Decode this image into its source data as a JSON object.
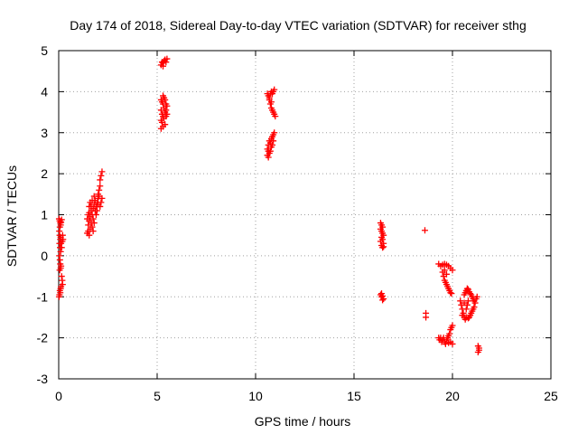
{
  "chart_data": {
    "type": "scatter",
    "title": "Day 174 of 2018, Sidereal Day-to-day VTEC variation (SDTVAR) for receiver sthg",
    "xlabel": "GPS time / hours",
    "ylabel": "SDTVAR / TECUs",
    "xlim": [
      0,
      25
    ],
    "ylim": [
      -3,
      5
    ],
    "xticks": [
      "0",
      "5",
      "10",
      "15",
      "20",
      "25"
    ],
    "yticks": [
      "-3",
      "-2",
      "-1",
      "0",
      "1",
      "2",
      "3",
      "4",
      "5"
    ],
    "grid": true,
    "marker": "+",
    "color": "#ff0000",
    "series": [
      {
        "name": "SDTVAR",
        "points": [
          [
            0.02,
            0.9
          ],
          [
            0.05,
            0.85
          ],
          [
            0.08,
            0.8
          ],
          [
            0.1,
            0.75
          ],
          [
            0.12,
            0.82
          ],
          [
            0.15,
            0.88
          ],
          [
            0.06,
            0.7
          ],
          [
            0.03,
            0.6
          ],
          [
            0.05,
            0.5
          ],
          [
            0.08,
            0.4
          ],
          [
            0.12,
            0.3
          ],
          [
            0.15,
            0.2
          ],
          [
            0.1,
            0.45
          ],
          [
            0.18,
            0.35
          ],
          [
            0.2,
            0.5
          ],
          [
            0.22,
            0.4
          ],
          [
            0.04,
            0.3
          ],
          [
            0.07,
            0.2
          ],
          [
            0.1,
            0.1
          ],
          [
            0.03,
            0.0
          ],
          [
            0.06,
            -0.1
          ],
          [
            0.08,
            -0.2
          ],
          [
            0.1,
            -0.3
          ],
          [
            0.12,
            -0.25
          ],
          [
            0.05,
            -0.35
          ],
          [
            0.15,
            -0.5
          ],
          [
            0.18,
            -0.6
          ],
          [
            0.2,
            -0.7
          ],
          [
            0.12,
            -0.75
          ],
          [
            0.1,
            -0.8
          ],
          [
            0.06,
            -0.85
          ],
          [
            0.04,
            -0.95
          ],
          [
            0.02,
            -1.0
          ],
          [
            0.08,
            -0.9
          ],
          [
            1.45,
            0.55
          ],
          [
            1.5,
            0.6
          ],
          [
            1.55,
            0.5
          ],
          [
            1.6,
            0.65
          ],
          [
            1.5,
            0.75
          ],
          [
            1.55,
            0.85
          ],
          [
            1.45,
            0.9
          ],
          [
            1.5,
            1.0
          ],
          [
            1.55,
            1.05
          ],
          [
            1.6,
            0.95
          ],
          [
            1.65,
            1.1
          ],
          [
            1.7,
            1.0
          ],
          [
            1.75,
            0.9
          ],
          [
            1.8,
            0.8
          ],
          [
            1.7,
            0.7
          ],
          [
            1.65,
            0.8
          ],
          [
            1.75,
            1.15
          ],
          [
            1.8,
            1.25
          ],
          [
            1.85,
            1.1
          ],
          [
            1.9,
            1.2
          ],
          [
            1.95,
            1.3
          ],
          [
            2.0,
            1.4
          ],
          [
            1.85,
            1.35
          ],
          [
            1.9,
            1.0
          ],
          [
            1.95,
            1.1
          ],
          [
            2.0,
            1.5
          ],
          [
            2.05,
            1.6
          ],
          [
            2.1,
            1.7
          ],
          [
            2.05,
            1.45
          ],
          [
            2.0,
            1.25
          ],
          [
            2.1,
            1.85
          ],
          [
            2.15,
            1.95
          ],
          [
            2.2,
            2.05
          ],
          [
            2.15,
            1.3
          ],
          [
            2.2,
            1.4
          ],
          [
            2.1,
            1.2
          ],
          [
            1.55,
            1.2
          ],
          [
            1.6,
            1.3
          ],
          [
            1.7,
            1.35
          ],
          [
            1.65,
            1.2
          ],
          [
            1.8,
            1.45
          ],
          [
            1.75,
            0.6
          ],
          [
            5.2,
            4.65
          ],
          [
            5.25,
            4.72
          ],
          [
            5.3,
            4.7
          ],
          [
            5.35,
            4.75
          ],
          [
            5.4,
            4.78
          ],
          [
            5.45,
            4.72
          ],
          [
            5.5,
            4.8
          ],
          [
            5.3,
            4.62
          ],
          [
            5.2,
            3.8
          ],
          [
            5.25,
            3.75
          ],
          [
            5.3,
            3.7
          ],
          [
            5.35,
            3.6
          ],
          [
            5.4,
            3.5
          ],
          [
            5.2,
            3.55
          ],
          [
            5.25,
            3.45
          ],
          [
            5.3,
            3.4
          ],
          [
            5.35,
            3.35
          ],
          [
            5.2,
            3.3
          ],
          [
            5.25,
            3.25
          ],
          [
            5.3,
            3.15
          ],
          [
            5.2,
            3.1
          ],
          [
            5.4,
            3.8
          ],
          [
            5.45,
            3.7
          ],
          [
            5.5,
            3.65
          ],
          [
            5.45,
            3.55
          ],
          [
            5.5,
            3.45
          ],
          [
            5.45,
            3.4
          ],
          [
            5.35,
            3.85
          ],
          [
            5.3,
            3.9
          ],
          [
            5.4,
            3.2
          ],
          [
            10.6,
            3.95
          ],
          [
            10.65,
            3.9
          ],
          [
            10.7,
            3.85
          ],
          [
            10.75,
            3.95
          ],
          [
            10.8,
            4.0
          ],
          [
            10.85,
            3.95
          ],
          [
            10.9,
            4.0
          ],
          [
            10.95,
            4.05
          ],
          [
            10.7,
            3.8
          ],
          [
            10.75,
            3.7
          ],
          [
            10.8,
            3.6
          ],
          [
            10.85,
            3.55
          ],
          [
            10.9,
            3.5
          ],
          [
            10.95,
            3.45
          ],
          [
            11.0,
            3.4
          ],
          [
            10.8,
            3.75
          ],
          [
            10.6,
            2.45
          ],
          [
            10.65,
            2.4
          ],
          [
            10.7,
            2.5
          ],
          [
            10.6,
            2.6
          ],
          [
            10.65,
            2.7
          ],
          [
            10.7,
            2.8
          ],
          [
            10.75,
            2.75
          ],
          [
            10.8,
            2.85
          ],
          [
            10.85,
            2.9
          ],
          [
            10.9,
            2.95
          ],
          [
            10.95,
            3.0
          ],
          [
            10.75,
            2.55
          ],
          [
            10.8,
            2.65
          ],
          [
            10.85,
            2.7
          ],
          [
            10.9,
            2.8
          ],
          [
            10.65,
            2.55
          ],
          [
            16.35,
            0.8
          ],
          [
            16.4,
            0.75
          ],
          [
            16.45,
            0.7
          ],
          [
            16.35,
            0.65
          ],
          [
            16.4,
            0.6
          ],
          [
            16.45,
            0.55
          ],
          [
            16.5,
            0.5
          ],
          [
            16.4,
            0.45
          ],
          [
            16.45,
            0.4
          ],
          [
            16.5,
            0.3
          ],
          [
            16.4,
            0.25
          ],
          [
            16.45,
            0.2
          ],
          [
            16.5,
            0.22
          ],
          [
            16.35,
            0.35
          ],
          [
            16.35,
            -0.95
          ],
          [
            16.4,
            -1.0
          ],
          [
            16.45,
            -0.98
          ],
          [
            16.5,
            -1.05
          ],
          [
            16.4,
            -0.92
          ],
          [
            16.45,
            -1.08
          ],
          [
            18.6,
            0.62
          ],
          [
            18.65,
            -1.4
          ],
          [
            18.65,
            -1.5
          ],
          [
            19.3,
            -0.2
          ],
          [
            19.4,
            -0.25
          ],
          [
            19.5,
            -0.22
          ],
          [
            19.6,
            -0.2
          ],
          [
            19.7,
            -0.22
          ],
          [
            19.8,
            -0.25
          ],
          [
            19.9,
            -0.3
          ],
          [
            20.0,
            -0.35
          ],
          [
            19.5,
            -0.4
          ],
          [
            19.55,
            -0.5
          ],
          [
            19.6,
            -0.6
          ],
          [
            19.65,
            -0.65
          ],
          [
            19.7,
            -0.7
          ],
          [
            19.75,
            -0.75
          ],
          [
            19.8,
            -0.8
          ],
          [
            19.85,
            -0.85
          ],
          [
            19.9,
            -0.9
          ],
          [
            19.95,
            -0.92
          ],
          [
            19.7,
            -0.45
          ],
          [
            19.6,
            -0.35
          ],
          [
            19.3,
            -2.0
          ],
          [
            19.35,
            -2.05
          ],
          [
            19.4,
            -2.0
          ],
          [
            19.45,
            -2.1
          ],
          [
            19.5,
            -2.05
          ],
          [
            19.55,
            -2.0
          ],
          [
            19.6,
            -2.1
          ],
          [
            19.65,
            -2.15
          ],
          [
            19.7,
            -2.05
          ],
          [
            19.75,
            -2.0
          ],
          [
            19.8,
            -1.95
          ],
          [
            19.85,
            -1.9
          ],
          [
            19.9,
            -1.8
          ],
          [
            19.95,
            -1.75
          ],
          [
            20.0,
            -1.7
          ],
          [
            19.9,
            -2.1
          ],
          [
            20.0,
            -2.15
          ],
          [
            19.8,
            -2.12
          ],
          [
            20.4,
            -1.1
          ],
          [
            20.45,
            -1.2
          ],
          [
            20.5,
            -1.3
          ],
          [
            20.55,
            -1.4
          ],
          [
            20.6,
            -1.5
          ],
          [
            20.65,
            -1.55
          ],
          [
            20.5,
            -1.45
          ],
          [
            20.7,
            -1.5
          ],
          [
            20.6,
            -0.95
          ],
          [
            20.65,
            -0.9
          ],
          [
            20.7,
            -0.85
          ],
          [
            20.75,
            -0.8
          ],
          [
            20.8,
            -0.82
          ],
          [
            20.85,
            -0.88
          ],
          [
            20.9,
            -0.92
          ],
          [
            20.95,
            -0.95
          ],
          [
            21.0,
            -1.0
          ],
          [
            21.05,
            -1.05
          ],
          [
            21.1,
            -1.1
          ],
          [
            21.15,
            -1.15
          ],
          [
            21.1,
            -1.25
          ],
          [
            21.05,
            -1.3
          ],
          [
            21.0,
            -1.35
          ],
          [
            20.95,
            -1.4
          ],
          [
            20.9,
            -1.45
          ],
          [
            20.85,
            -1.5
          ],
          [
            20.8,
            -1.52
          ],
          [
            20.7,
            -1.3
          ],
          [
            20.75,
            -1.2
          ],
          [
            20.8,
            -1.1
          ],
          [
            20.6,
            -1.15
          ],
          [
            21.2,
            -1.05
          ],
          [
            21.25,
            -1.0
          ],
          [
            21.3,
            -2.2
          ],
          [
            21.35,
            -2.25
          ],
          [
            21.3,
            -2.35
          ],
          [
            21.35,
            -2.3
          ]
        ]
      }
    ]
  }
}
